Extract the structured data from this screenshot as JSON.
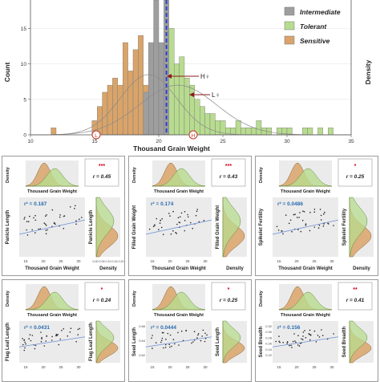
{
  "colors": {
    "intermediate": "#9e9e9e",
    "tolerant": "#b8dc8f",
    "sensitive": "#d9a46a",
    "mean_line": "#2b3fd1",
    "arrow": "#8b1a1a",
    "circle": "#c0392b",
    "point": "#222222",
    "fit": "#6c8fd6",
    "plot_bg": "#ebebeb",
    "stat_red": "#d0021b"
  },
  "chart_data": [
    {
      "type": "bar",
      "ylabel": "Count",
      "y2label": "Density",
      "xlabel": "Thousand Grain Weight",
      "xlim": [
        10,
        35
      ],
      "ylim": [
        0,
        19
      ],
      "x_ticks": [
        "10",
        "15",
        "20",
        "25",
        "30",
        "35"
      ],
      "y_ticks": [
        "0",
        "5",
        "10",
        "15"
      ],
      "bin_width": 0.4,
      "legend": {
        "placement": "top-right",
        "entries": [
          "Intermediate",
          "Tolerant",
          "Sensitive"
        ]
      },
      "series": [
        {
          "name": "Sensitive",
          "x": [
            11.6,
            14.8,
            15.2,
            15.6,
            16.0,
            16.4,
            16.8,
            17.2,
            17.6,
            18.0,
            18.4,
            18.8,
            26.8
          ],
          "values": [
            1,
            2,
            4,
            6,
            7,
            8,
            7,
            13,
            9,
            12,
            14,
            7,
            1
          ]
        },
        {
          "name": "Intermediate",
          "x": [
            18.8,
            19.2,
            19.6,
            20.0,
            20.4
          ],
          "values": [
            6,
            13,
            19,
            13,
            19
          ]
        },
        {
          "name": "Tolerant",
          "x": [
            20.8,
            21.2,
            21.6,
            22.0,
            22.4,
            22.8,
            23.2,
            23.6,
            24.0,
            24.4,
            24.8,
            25.2,
            25.6,
            26.0,
            26.4,
            26.8,
            27.2,
            27.6,
            28.0,
            28.4,
            29.2,
            29.6,
            30.0,
            31.2,
            31.6,
            32.4,
            33.2
          ],
          "values": [
            15,
            10,
            11,
            8,
            7,
            5,
            4,
            3,
            3,
            2,
            2,
            1,
            1,
            2,
            1,
            1,
            1,
            2,
            1,
            1,
            1,
            1,
            1,
            1,
            1,
            1,
            1
          ]
        }
      ],
      "mean_line_x": 20.6,
      "annotations": {
        "circle_left": "L",
        "circle_right": "H",
        "h_label": "H♀",
        "l_label": "L♀"
      }
    },
    {
      "panel_id": "tgw-panicle-length",
      "type": "scatter",
      "xlabel": "Thousand Grain Weight",
      "ylabel": "Panicle Length",
      "x_ticks": [
        "15",
        "20",
        "25",
        "30"
      ],
      "r2_label": "r² = 0.187",
      "r_label": "r = 0.45",
      "stars": "***",
      "density_xlabel": "Thousand Grain Weight",
      "density_ylabel": "Density",
      "side_ylabel": "Panicle Length",
      "side_xlabel": "Density",
      "side_ticks": [
        "0.00",
        "0.05",
        "0.10",
        "0.15",
        "0.20"
      ]
    },
    {
      "panel_id": "tgw-filled-grain-weight",
      "type": "scatter",
      "xlabel": "Thousand Grain Weight",
      "ylabel": "Filled Grain Weight",
      "x_ticks": [
        "15",
        "20",
        "25",
        "30"
      ],
      "r2_label": "r² = 0.174",
      "r_label": "r = 0.43",
      "stars": "***",
      "density_xlabel": "Thousand Grain Weight",
      "density_ylabel": "Density",
      "side_ylabel": "Filled Grain Weight",
      "side_xlabel": "Density"
    },
    {
      "panel_id": "tgw-spikelet-fertility",
      "type": "scatter",
      "xlabel": "Thousand Grain Weight",
      "ylabel": "Spikelet Fertility",
      "x_ticks": [
        "15",
        "20",
        "25",
        "30"
      ],
      "r2_label": "r² = 0.0486",
      "r_label": "r = 0.25",
      "stars": "*",
      "density_xlabel": "Thousand Grain Weight",
      "density_ylabel": "Density",
      "side_ylabel": "Spikelet Fertility",
      "side_xlabel": "Density"
    },
    {
      "panel_id": "tgw-flag-leaf-length",
      "type": "scatter",
      "xlabel": "",
      "ylabel": "Flag Leaf Length",
      "x_ticks": [
        "15",
        "20",
        "25",
        "30"
      ],
      "r2_label": "r² = 0.0431",
      "r_label": "r = 0.24",
      "stars": "*",
      "density_xlabel": "Thousand Grain Weight",
      "density_ylabel": "Density",
      "side_ylabel": "Flag Leaf Length",
      "side_xlabel": ""
    },
    {
      "panel_id": "tgw-seed-length",
      "type": "scatter",
      "xlabel": "",
      "ylabel": "Seed Length",
      "x_ticks": [
        "15",
        "20",
        "25",
        "30"
      ],
      "y_ticks": [
        "0.66",
        "0.64",
        "0.62"
      ],
      "r2_label": "r² = 0.0444",
      "r_label": "r = 0.25",
      "stars": "*",
      "density_xlabel": "Thousand Grain Weight",
      "density_ylabel": "Density",
      "side_ylabel": "Seed Length",
      "side_xlabel": ""
    },
    {
      "panel_id": "tgw-seed-breadth",
      "type": "scatter",
      "xlabel": "",
      "ylabel": "Seed Breadth",
      "x_ticks": [
        "15",
        "20",
        "25",
        "30"
      ],
      "y_ticks": [
        "0.32",
        "0.30",
        "0.28",
        "0.26",
        "0.24",
        "0.22"
      ],
      "r2_label": "r² = 0.156",
      "r_label": "r = 0.41",
      "stars": "**",
      "density_xlabel": "Thousand Grain Weight",
      "density_ylabel": "Density",
      "side_ylabel": "Seed Breadth",
      "side_xlabel": ""
    }
  ]
}
